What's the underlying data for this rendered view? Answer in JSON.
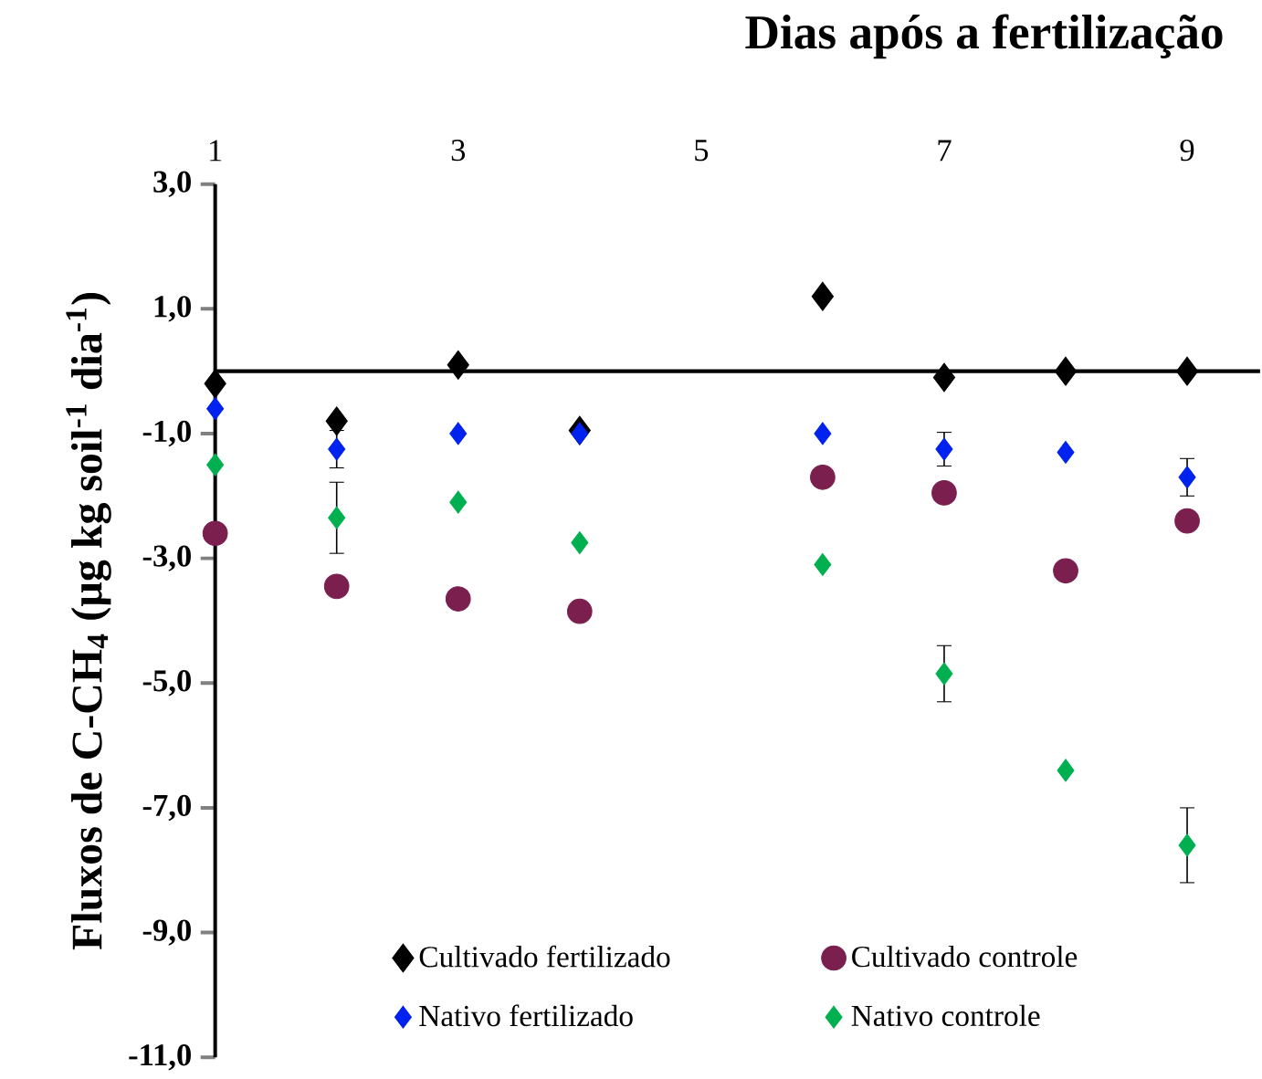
{
  "chart_data": {
    "type": "scatter",
    "title": "Dias após a fertilização",
    "ylabel": "Fluxos de C-CH$_{4}$  (µg kg soil$^{-1}$ dia$^{-1}$)",
    "x": [
      1,
      2,
      3,
      4,
      6,
      7,
      8,
      9
    ],
    "xlim": [
      1,
      9.6
    ],
    "xticks": [
      1,
      3,
      5,
      7,
      9
    ],
    "ylim": [
      -11,
      3
    ],
    "yticks": [
      {
        "value": 3,
        "label": "3,0"
      },
      {
        "value": 1,
        "label": "1,0"
      },
      {
        "value": -1,
        "label": "-1,0"
      },
      {
        "value": -3,
        "label": "-3,0"
      },
      {
        "value": -5,
        "label": "-5,0"
      },
      {
        "value": -7,
        "label": "-7,0"
      },
      {
        "value": -9,
        "label": "-9,0"
      },
      {
        "value": -11,
        "label": "-11,0"
      }
    ],
    "ref_lines": [
      {
        "axis": "y",
        "value": 0,
        "color": "#000000"
      }
    ],
    "legend": "bottom",
    "grid": false,
    "series": [
      {
        "name": "Cultivado fertilizado",
        "color": "#000000",
        "marker": "diamond",
        "values": [
          -0.2,
          -0.8,
          0.1,
          -0.95,
          1.2,
          -0.1,
          0.0,
          0.0
        ]
      },
      {
        "name": "Cultivado controle",
        "color": "#7b1f4f",
        "marker": "circle",
        "values": [
          -2.6,
          -3.45,
          -3.65,
          -3.85,
          -1.7,
          -1.95,
          -3.2,
          -2.4
        ]
      },
      {
        "name": "Nativo fertilizado",
        "color": "#0022ee",
        "marker": "diamond",
        "values": [
          -0.6,
          -1.25,
          -1.0,
          -1.0,
          -1.0,
          -1.25,
          -1.3,
          -1.7
        ],
        "errors": [
          null,
          0.3,
          null,
          null,
          null,
          0.27,
          null,
          0.3
        ]
      },
      {
        "name": "Nativo controle",
        "color": "#00b050",
        "marker": "diamond",
        "values": [
          -1.5,
          -2.35,
          -2.1,
          -2.75,
          -3.1,
          -4.85,
          -6.4,
          -7.6
        ],
        "errors": [
          null,
          0.57,
          null,
          null,
          null,
          0.45,
          null,
          0.6
        ]
      }
    ]
  }
}
